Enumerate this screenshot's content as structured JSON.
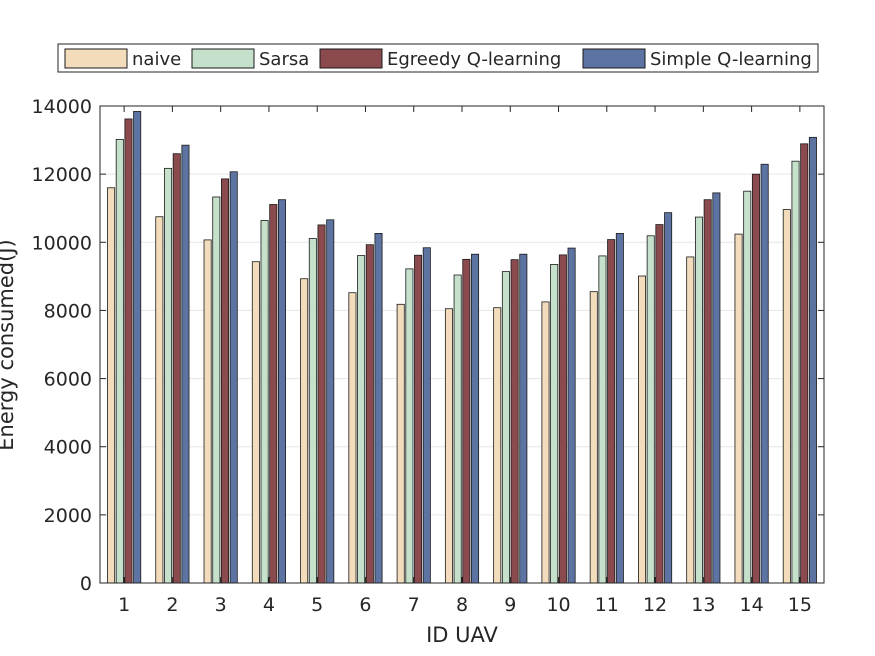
{
  "chart_data": {
    "type": "bar",
    "title": "",
    "xlabel": "ID UAV",
    "ylabel": "Energy consumed(J)",
    "ylim": [
      0,
      14000
    ],
    "yticks": [
      0,
      2000,
      4000,
      6000,
      8000,
      10000,
      12000,
      14000
    ],
    "grid": true,
    "legend_position": "top",
    "categories": [
      "1",
      "2",
      "3",
      "4",
      "5",
      "6",
      "7",
      "8",
      "9",
      "10",
      "11",
      "12",
      "13",
      "14",
      "15"
    ],
    "series": [
      {
        "name": "naive",
        "color": "#f2dcbc",
        "values": [
          11600,
          10750,
          10070,
          9430,
          8930,
          8520,
          8180,
          8050,
          8080,
          8250,
          8550,
          9010,
          9570,
          10240,
          10960
        ]
      },
      {
        "name": "Sarsa",
        "color": "#c5e0cb",
        "values": [
          13020,
          12170,
          11330,
          10640,
          10110,
          9610,
          9220,
          9040,
          9140,
          9350,
          9600,
          10190,
          10740,
          11500,
          12380
        ]
      },
      {
        "name": "Egreedy Q-learning",
        "color": "#8b4a4d",
        "values": [
          13620,
          12600,
          11860,
          11110,
          10510,
          9930,
          9620,
          9500,
          9490,
          9630,
          10080,
          10520,
          11250,
          12000,
          12890
        ]
      },
      {
        "name": "Simple Q-learning",
        "color": "#5d73a1",
        "values": [
          13840,
          12850,
          12070,
          11250,
          10660,
          10260,
          9840,
          9650,
          9650,
          9830,
          10260,
          10870,
          11450,
          12290,
          13080
        ]
      }
    ]
  }
}
